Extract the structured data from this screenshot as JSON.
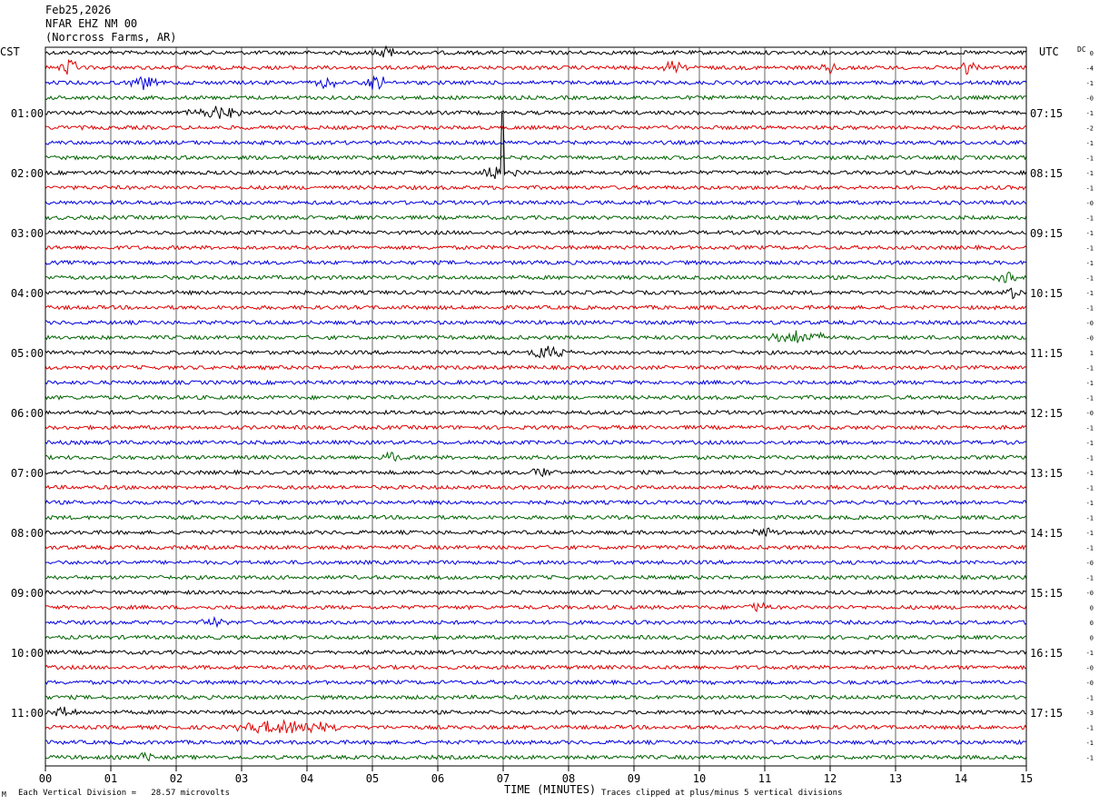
{
  "header": {
    "date": "Feb25,2026",
    "station": "NFAR EHZ NM 00",
    "location": "(Norcross Farms, AR)"
  },
  "left_axis_title": "CST",
  "right_axis_title": "UTC",
  "dc_title": "DC",
  "footer": {
    "scale_note": "Each Vertical Division =   28.57 microvolts",
    "xlabel": "TIME (MINUTES)",
    "clip_note": "Traces clipped at plus/minus 5 vertical divisions",
    "corner_mark": "M"
  },
  "colors": {
    "trace_cycle": [
      "#000000",
      "#e00000",
      "#0000e0",
      "#006400"
    ],
    "grid": "#000000"
  },
  "chart_data": {
    "type": "line",
    "title": "NFAR EHZ NM 00 helicorder",
    "xlabel": "TIME (MINUTES)",
    "xlim": [
      0,
      15
    ],
    "x_ticks": [
      "00",
      "01",
      "02",
      "03",
      "04",
      "05",
      "06",
      "07",
      "08",
      "09",
      "10",
      "11",
      "12",
      "13",
      "14",
      "15"
    ],
    "rows": 48,
    "left_hour_labels": [
      {
        "row": 4,
        "label": "01:00"
      },
      {
        "row": 8,
        "label": "02:00"
      },
      {
        "row": 12,
        "label": "03:00"
      },
      {
        "row": 16,
        "label": "04:00"
      },
      {
        "row": 20,
        "label": "05:00"
      },
      {
        "row": 24,
        "label": "06:00"
      },
      {
        "row": 28,
        "label": "07:00"
      },
      {
        "row": 32,
        "label": "08:00"
      },
      {
        "row": 36,
        "label": "09:00"
      },
      {
        "row": 40,
        "label": "10:00"
      },
      {
        "row": 44,
        "label": "11:00"
      }
    ],
    "right_hour_labels": [
      {
        "row": 4,
        "label": "07:15"
      },
      {
        "row": 8,
        "label": "08:15"
      },
      {
        "row": 12,
        "label": "09:15"
      },
      {
        "row": 16,
        "label": "10:15"
      },
      {
        "row": 20,
        "label": "11:15"
      },
      {
        "row": 24,
        "label": "12:15"
      },
      {
        "row": 28,
        "label": "13:15"
      },
      {
        "row": 32,
        "label": "14:15"
      },
      {
        "row": 36,
        "label": "15:15"
      },
      {
        "row": 40,
        "label": "16:15"
      },
      {
        "row": 44,
        "label": "17:15"
      }
    ],
    "dc_offsets": [
      "0",
      "-4",
      "-1",
      "-0",
      "-1",
      "-2",
      "-1",
      "-1",
      "-1",
      "-1",
      "-0",
      "-1",
      "-1",
      "-1",
      "-1",
      "-1",
      "-1",
      "-1",
      "-0",
      "-0",
      "1",
      "-1",
      "-1",
      "-1",
      "-0",
      "-1",
      "-1",
      "-1",
      "-1",
      "-1",
      "-1",
      "-1",
      "-1",
      "-1",
      "-0",
      "-1",
      "-0",
      "0",
      "0",
      "0",
      "-1",
      "-0",
      "-0",
      "-1",
      "-3",
      "-1",
      "-1",
      "-1"
    ],
    "events": [
      {
        "row": 0,
        "minute": 5.2,
        "amp": 1.5
      },
      {
        "row": 1,
        "minute": 0.35,
        "amp": 2
      },
      {
        "row": 1,
        "minute": 9.6,
        "amp": 1.5
      },
      {
        "row": 1,
        "minute": 12.0,
        "amp": 1.5
      },
      {
        "row": 1,
        "minute": 14.1,
        "amp": 1.8
      },
      {
        "row": 2,
        "minute": 1.5,
        "amp": 2
      },
      {
        "row": 2,
        "minute": 4.3,
        "amp": 1.5
      },
      {
        "row": 2,
        "minute": 5.05,
        "amp": 2
      },
      {
        "row": 4,
        "minute": 2.6,
        "amp": 1.5,
        "width": 0.6
      },
      {
        "row": 8,
        "minute": 6.8,
        "amp": 2
      },
      {
        "row": 8,
        "minute": 6.98,
        "amp": 5,
        "clip": true
      },
      {
        "row": 15,
        "minute": 14.7,
        "amp": 1.5
      },
      {
        "row": 16,
        "minute": 14.8,
        "amp": 1.5
      },
      {
        "row": 19,
        "minute": 11.5,
        "amp": 1.5,
        "width": 0.8
      },
      {
        "row": 20,
        "minute": 7.6,
        "amp": 2
      },
      {
        "row": 20,
        "minute": 7.85,
        "amp": 1.5
      },
      {
        "row": 27,
        "minute": 5.3,
        "amp": 1.5
      },
      {
        "row": 28,
        "minute": 7.6,
        "amp": 1.5
      },
      {
        "row": 32,
        "minute": 11.0,
        "amp": 1.3
      },
      {
        "row": 37,
        "minute": 10.85,
        "amp": 1.5
      },
      {
        "row": 38,
        "minute": 2.6,
        "amp": 1.5
      },
      {
        "row": 44,
        "minute": 0.3,
        "amp": 1.5
      },
      {
        "row": 45,
        "minute": 3.7,
        "amp": 2,
        "width": 1.0
      },
      {
        "row": 47,
        "minute": 1.55,
        "amp": 1.5
      }
    ]
  }
}
